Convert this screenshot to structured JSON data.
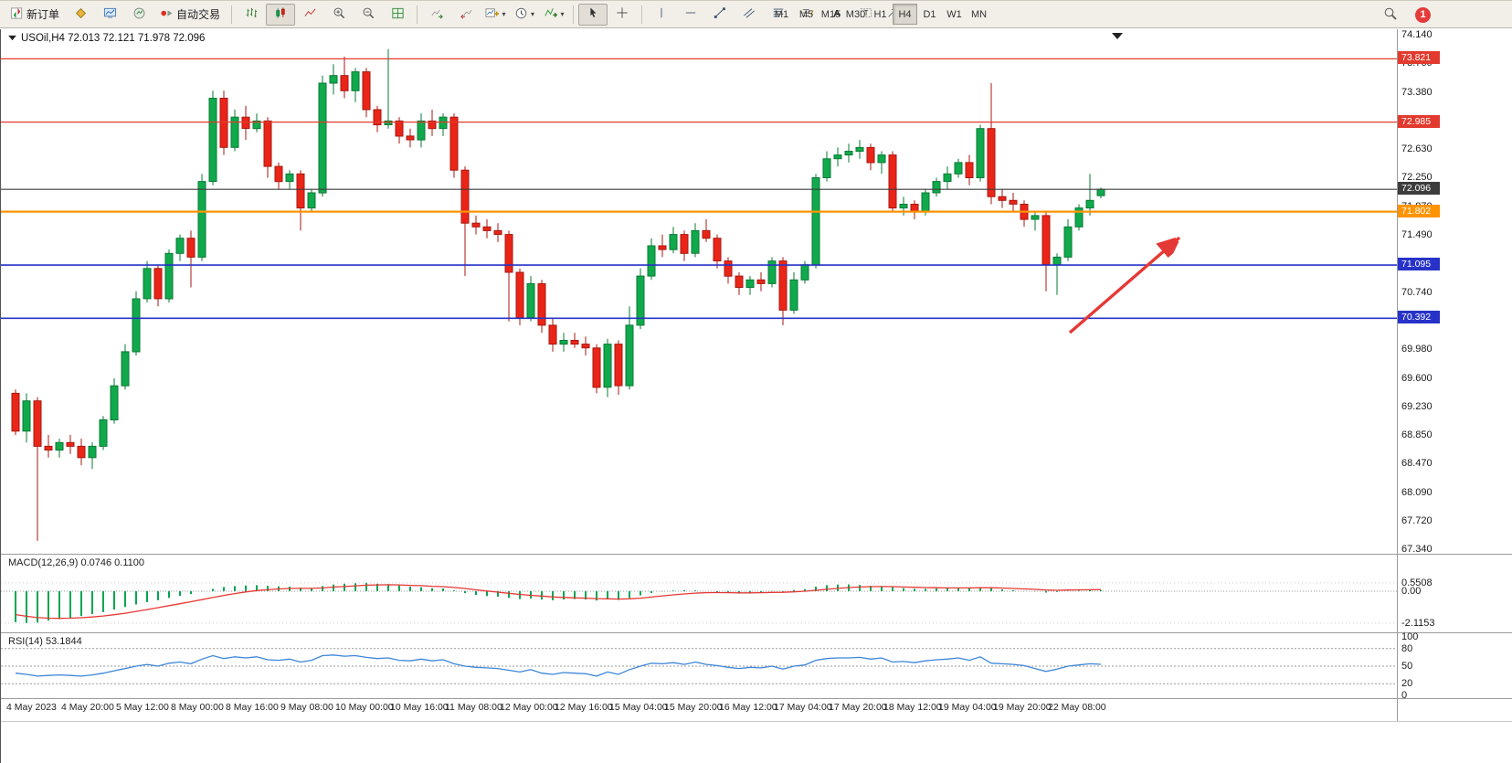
{
  "toolbar": {
    "new_order_label": "新订单",
    "auto_trading_label": "自动交易",
    "timeframes": [
      "M1",
      "M5",
      "M15",
      "M30",
      "H1",
      "H4",
      "D1",
      "W1",
      "MN"
    ],
    "active_timeframe": "H4",
    "notification_count": "1"
  },
  "theme": {
    "bull": "#10a94c",
    "bull_stroke": "#0a7a36",
    "bear": "#ea2518",
    "bear_stroke": "#a8170f",
    "macd_hist": "#00a651",
    "macd_signal": "#e53935",
    "rsi_line": "#3c86d8",
    "arrow": "#e53935",
    "current_price_line": "#3d3d3d"
  },
  "chart": {
    "symbol_ohlc_label": "USOil,H4 72.013 72.121 71.978 72.096",
    "price_axis_ticks": [
      "74.140",
      "73.760",
      "73.380",
      "73.000",
      "72.630",
      "72.250",
      "71.870",
      "71.490",
      "71.110",
      "70.740",
      "70.360",
      "69.980",
      "69.600",
      "69.230",
      "68.850",
      "68.470",
      "68.090",
      "67.720",
      "67.340"
    ],
    "levels": [
      {
        "label": "73.821",
        "value": 73.821,
        "color": "#e23a2e",
        "width": 1.3
      },
      {
        "label": "72.985",
        "value": 72.985,
        "color": "#e23a2e",
        "width": 1.3
      },
      {
        "label": "72.096",
        "value": 72.096,
        "color": "#3d3d3d",
        "width": 1.1
      },
      {
        "label": "71.802",
        "value": 71.802,
        "color": "#ff9300",
        "width": 2.2
      },
      {
        "label": "71.095",
        "value": 71.095,
        "color": "#2733c8",
        "width": 1.6
      },
      {
        "label": "70.392",
        "value": 70.392,
        "color": "#2733c8",
        "width": 1.6
      }
    ],
    "time_labels": [
      "4 May 2023",
      "4 May 20:00",
      "5 May 12:00",
      "8 May 00:00",
      "8 May 16:00",
      "9 May 08:00",
      "10 May 00:00",
      "10 May 16:00",
      "11 May 08:00",
      "12 May 00:00",
      "12 May 16:00",
      "15 May 04:00",
      "15 May 20:00",
      "16 May 12:00",
      "17 May 04:00",
      "17 May 20:00",
      "18 May 12:00",
      "19 May 04:00",
      "19 May 20:00",
      "22 May 08:00"
    ]
  },
  "macd_panel": {
    "label": "MACD(12,26,9) 0.0746 0.1100",
    "axis": [
      {
        "label": "0.5508",
        "value": 0.5508
      },
      {
        "label": "0.00",
        "value": 0
      },
      {
        "label": "-2.1153",
        "value": -2.1153
      }
    ]
  },
  "rsi_panel": {
    "label": "RSI(14) 53.1844",
    "axis": [
      {
        "label": "100",
        "value": 100
      },
      {
        "label": "80",
        "value": 80
      },
      {
        "label": "50",
        "value": 50
      },
      {
        "label": "20",
        "value": 20
      },
      {
        "label": "0",
        "value": 0
      }
    ],
    "levels": [
      80,
      50,
      20
    ]
  },
  "chart_data": {
    "type": "candlestick",
    "symbol": "USOil",
    "timeframe": "H4",
    "price_range": [
      67.34,
      74.14
    ],
    "last_ohlc": {
      "open": 72.013,
      "high": 72.121,
      "low": 71.978,
      "close": 72.096
    },
    "candles": [
      [
        69.4,
        69.45,
        68.85,
        68.9
      ],
      [
        68.9,
        69.4,
        68.75,
        69.3
      ],
      [
        69.3,
        69.35,
        67.45,
        68.7
      ],
      [
        68.7,
        68.85,
        68.55,
        68.65
      ],
      [
        68.65,
        68.8,
        68.55,
        68.75
      ],
      [
        68.75,
        68.85,
        68.6,
        68.7
      ],
      [
        68.7,
        68.8,
        68.45,
        68.55
      ],
      [
        68.55,
        68.75,
        68.4,
        68.7
      ],
      [
        68.7,
        69.1,
        68.65,
        69.05
      ],
      [
        69.05,
        69.6,
        69.0,
        69.5
      ],
      [
        69.5,
        70.05,
        69.45,
        69.95
      ],
      [
        69.95,
        70.75,
        69.9,
        70.65
      ],
      [
        70.65,
        71.15,
        70.6,
        71.05
      ],
      [
        71.05,
        71.1,
        70.55,
        70.65
      ],
      [
        70.65,
        71.3,
        70.6,
        71.25
      ],
      [
        71.25,
        71.5,
        71.15,
        71.45
      ],
      [
        71.45,
        71.55,
        70.8,
        71.2
      ],
      [
        71.2,
        72.3,
        71.15,
        72.2
      ],
      [
        72.2,
        73.4,
        72.15,
        73.3
      ],
      [
        73.3,
        73.4,
        72.55,
        72.65
      ],
      [
        72.65,
        73.15,
        72.6,
        73.05
      ],
      [
        73.05,
        73.2,
        72.75,
        72.9
      ],
      [
        72.9,
        73.1,
        72.85,
        73.0
      ],
      [
        73.0,
        73.05,
        72.25,
        72.4
      ],
      [
        72.4,
        72.45,
        72.1,
        72.2
      ],
      [
        72.2,
        72.35,
        72.1,
        72.3
      ],
      [
        72.3,
        72.35,
        71.55,
        71.85
      ],
      [
        71.85,
        72.1,
        71.8,
        72.05
      ],
      [
        72.05,
        73.6,
        72.0,
        73.5
      ],
      [
        73.5,
        73.75,
        73.35,
        73.6
      ],
      [
        73.6,
        73.85,
        73.3,
        73.4
      ],
      [
        73.4,
        73.7,
        73.25,
        73.65
      ],
      [
        73.65,
        73.7,
        73.05,
        73.15
      ],
      [
        73.15,
        73.2,
        72.85,
        72.95
      ],
      [
        72.95,
        73.95,
        72.9,
        73.0
      ],
      [
        73.0,
        73.05,
        72.7,
        72.8
      ],
      [
        72.8,
        72.9,
        72.65,
        72.75
      ],
      [
        72.75,
        73.1,
        72.65,
        73.0
      ],
      [
        73.0,
        73.15,
        72.8,
        72.9
      ],
      [
        72.9,
        73.1,
        72.8,
        73.05
      ],
      [
        73.05,
        73.1,
        72.25,
        72.35
      ],
      [
        72.35,
        72.4,
        70.95,
        71.65
      ],
      [
        71.65,
        71.75,
        71.5,
        71.6
      ],
      [
        71.6,
        71.7,
        71.45,
        71.55
      ],
      [
        71.55,
        71.65,
        71.4,
        71.5
      ],
      [
        71.5,
        71.55,
        70.35,
        71.0
      ],
      [
        71.0,
        71.05,
        70.3,
        70.4
      ],
      [
        70.4,
        70.95,
        70.35,
        70.85
      ],
      [
        70.85,
        70.9,
        70.2,
        70.3
      ],
      [
        70.3,
        70.4,
        69.95,
        70.05
      ],
      [
        70.05,
        70.2,
        69.95,
        70.1
      ],
      [
        70.1,
        70.2,
        70.0,
        70.05
      ],
      [
        70.05,
        70.15,
        69.9,
        70.0
      ],
      [
        70.0,
        70.05,
        69.4,
        69.48
      ],
      [
        69.48,
        70.12,
        69.35,
        70.05
      ],
      [
        70.05,
        70.1,
        69.38,
        69.5
      ],
      [
        69.5,
        70.55,
        69.45,
        70.3
      ],
      [
        70.3,
        71.05,
        70.25,
        70.95
      ],
      [
        70.95,
        71.45,
        70.9,
        71.35
      ],
      [
        71.35,
        71.5,
        71.2,
        71.3
      ],
      [
        71.3,
        71.6,
        71.25,
        71.5
      ],
      [
        71.5,
        71.55,
        71.15,
        71.25
      ],
      [
        71.25,
        71.65,
        71.2,
        71.55
      ],
      [
        71.55,
        71.7,
        71.4,
        71.45
      ],
      [
        71.45,
        71.5,
        71.05,
        71.15
      ],
      [
        71.15,
        71.2,
        70.85,
        70.95
      ],
      [
        70.95,
        71.0,
        70.7,
        70.8
      ],
      [
        70.8,
        70.95,
        70.7,
        70.9
      ],
      [
        70.9,
        71.0,
        70.75,
        70.85
      ],
      [
        70.85,
        71.2,
        70.8,
        71.15
      ],
      [
        71.15,
        71.2,
        70.3,
        70.5
      ],
      [
        70.5,
        71.0,
        70.45,
        70.9
      ],
      [
        70.9,
        71.15,
        70.85,
        71.1
      ],
      [
        71.1,
        72.3,
        71.05,
        72.25
      ],
      [
        72.25,
        72.6,
        72.2,
        72.5
      ],
      [
        72.5,
        72.65,
        72.4,
        72.55
      ],
      [
        72.55,
        72.7,
        72.45,
        72.6
      ],
      [
        72.6,
        72.75,
        72.5,
        72.65
      ],
      [
        72.65,
        72.7,
        72.35,
        72.45
      ],
      [
        72.45,
        72.6,
        72.3,
        72.55
      ],
      [
        72.55,
        72.6,
        71.8,
        71.85
      ],
      [
        71.85,
        72.0,
        71.75,
        71.9
      ],
      [
        71.9,
        71.95,
        71.7,
        71.8
      ],
      [
        71.8,
        72.1,
        71.75,
        72.05
      ],
      [
        72.05,
        72.25,
        72.0,
        72.2
      ],
      [
        72.2,
        72.4,
        72.1,
        72.3
      ],
      [
        72.3,
        72.5,
        72.25,
        72.45
      ],
      [
        72.45,
        72.55,
        72.15,
        72.25
      ],
      [
        72.25,
        72.95,
        72.2,
        72.9
      ],
      [
        72.9,
        73.5,
        71.9,
        72.0
      ],
      [
        72.0,
        72.1,
        71.85,
        71.95
      ],
      [
        71.95,
        72.05,
        71.8,
        71.9
      ],
      [
        71.9,
        71.95,
        71.6,
        71.7
      ],
      [
        71.7,
        71.8,
        71.55,
        71.75
      ],
      [
        71.75,
        71.8,
        70.75,
        71.1
      ],
      [
        71.1,
        71.25,
        70.7,
        71.2
      ],
      [
        71.2,
        71.7,
        71.15,
        71.6
      ],
      [
        71.6,
        71.9,
        71.55,
        71.85
      ],
      [
        71.85,
        72.3,
        71.75,
        71.95
      ],
      [
        72.013,
        72.121,
        71.978,
        72.096
      ]
    ],
    "indicators": {
      "macd": {
        "params": "12,26,9",
        "current_main": 0.0746,
        "current_signal": 0.11,
        "histogram": [
          -2.05,
          -2.1,
          -2.08,
          -1.95,
          -1.85,
          -1.76,
          -1.65,
          -1.52,
          -1.38,
          -1.22,
          -1.05,
          -0.88,
          -0.72,
          -0.6,
          -0.45,
          -0.3,
          -0.18,
          -0.02,
          0.15,
          0.28,
          0.34,
          0.38,
          0.4,
          0.36,
          0.32,
          0.3,
          0.24,
          0.22,
          0.34,
          0.44,
          0.5,
          0.53,
          0.55,
          0.5,
          0.46,
          0.38,
          0.3,
          0.26,
          0.2,
          0.18,
          0.05,
          -0.12,
          -0.25,
          -0.32,
          -0.36,
          -0.44,
          -0.52,
          -0.48,
          -0.55,
          -0.6,
          -0.55,
          -0.52,
          -0.55,
          -0.62,
          -0.55,
          -0.58,
          -0.45,
          -0.28,
          -0.12,
          -0.02,
          0.04,
          0.07,
          0.05,
          0.0,
          -0.06,
          -0.12,
          -0.16,
          -0.12,
          -0.07,
          0.02,
          -0.03,
          0.08,
          0.14,
          0.3,
          0.4,
          0.44,
          0.45,
          0.42,
          0.36,
          0.34,
          0.26,
          0.2,
          0.16,
          0.16,
          0.19,
          0.22,
          0.24,
          0.2,
          0.27,
          0.22,
          0.12,
          0.06,
          0.01,
          -0.02,
          -0.09,
          -0.05,
          0.01,
          0.04,
          0.06,
          0.0746
        ],
        "signal": [
          -1.55,
          -1.66,
          -1.75,
          -1.79,
          -1.8,
          -1.79,
          -1.76,
          -1.71,
          -1.64,
          -1.56,
          -1.46,
          -1.34,
          -1.22,
          -1.09,
          -0.96,
          -0.83,
          -0.7,
          -0.56,
          -0.42,
          -0.28,
          -0.16,
          -0.05,
          0.04,
          0.1,
          0.15,
          0.18,
          0.19,
          0.19,
          0.22,
          0.27,
          0.31,
          0.36,
          0.4,
          0.42,
          0.43,
          0.42,
          0.39,
          0.37,
          0.33,
          0.3,
          0.25,
          0.18,
          0.09,
          0.01,
          -0.06,
          -0.14,
          -0.21,
          -0.27,
          -0.32,
          -0.38,
          -0.41,
          -0.44,
          -0.46,
          -0.49,
          -0.5,
          -0.52,
          -0.5,
          -0.46,
          -0.39,
          -0.31,
          -0.24,
          -0.18,
          -0.13,
          -0.1,
          -0.09,
          -0.1,
          -0.11,
          -0.11,
          -0.1,
          -0.08,
          -0.07,
          -0.04,
          0.0,
          0.06,
          0.13,
          0.19,
          0.24,
          0.28,
          0.3,
          0.31,
          0.3,
          0.28,
          0.26,
          0.24,
          0.23,
          0.22,
          0.22,
          0.22,
          0.23,
          0.23,
          0.21,
          0.18,
          0.15,
          0.12,
          0.08,
          0.06,
          0.08,
          0.09,
          0.1,
          0.11
        ]
      },
      "rsi": {
        "params": "14",
        "current": 53.1844,
        "values": [
          38,
          36,
          33,
          34,
          35,
          34,
          33,
          35,
          38,
          42,
          46,
          50,
          53,
          50,
          55,
          57,
          54,
          62,
          68,
          63,
          66,
          64,
          66,
          61,
          60,
          62,
          57,
          60,
          68,
          69,
          67,
          68,
          65,
          63,
          64,
          60,
          59,
          62,
          59,
          61,
          54,
          50,
          48,
          47,
          46,
          43,
          40,
          44,
          38,
          36,
          39,
          38,
          37,
          33,
          40,
          36,
          44,
          50,
          55,
          54,
          56,
          53,
          57,
          53,
          51,
          48,
          46,
          48,
          47,
          50,
          45,
          50,
          52,
          60,
          63,
          64,
          64,
          65,
          62,
          64,
          57,
          58,
          56,
          59,
          61,
          62,
          64,
          60,
          66,
          55,
          54,
          53,
          51,
          46,
          41,
          45,
          50,
          52,
          54,
          53.18
        ]
      }
    },
    "annotations": [
      {
        "type": "arrow",
        "color": "#e53935",
        "direction": "up-right",
        "from_price": 70.2,
        "to_price": 71.6
      }
    ]
  }
}
